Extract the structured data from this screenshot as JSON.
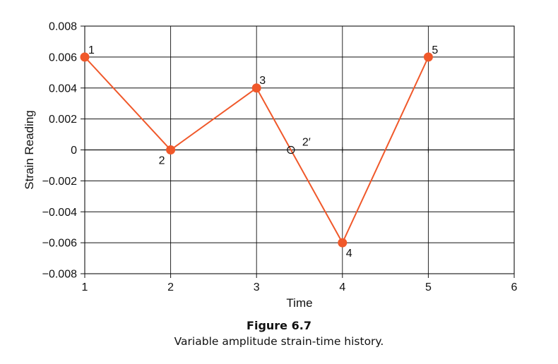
{
  "chart_data": {
    "type": "line",
    "x": [
      1,
      2,
      3,
      4,
      5
    ],
    "y": [
      0.006,
      0,
      0.004,
      -0.006,
      0.006
    ],
    "point_labels": [
      "1",
      "2",
      "3",
      "4",
      "5"
    ],
    "annotations": [
      {
        "x": 3.4,
        "y": 0,
        "label": "2′",
        "marker": "open-circle"
      }
    ],
    "xlabel": "Time",
    "ylabel": "Strain Reading",
    "xlim": [
      1,
      6
    ],
    "ylim": [
      -0.008,
      0.008
    ],
    "x_ticks": [
      1,
      2,
      3,
      4,
      5,
      6
    ],
    "x_tick_labels": [
      "1",
      "2",
      "3",
      "4",
      "5",
      "6"
    ],
    "y_ticks": [
      0.008,
      0.006,
      0.004,
      0.002,
      0,
      -0.002,
      -0.004,
      -0.006,
      -0.008
    ],
    "y_tick_labels": [
      "0.008",
      "0.006",
      "0.004",
      "0.002",
      "0",
      "−0.002",
      "−0.004",
      "−0.006",
      "−0.008"
    ],
    "grid": true,
    "line_color": "#f0582a",
    "marker_color": "#f0582a"
  },
  "caption": {
    "title": "Figure 6.7",
    "text": "Variable amplitude strain-time history."
  }
}
